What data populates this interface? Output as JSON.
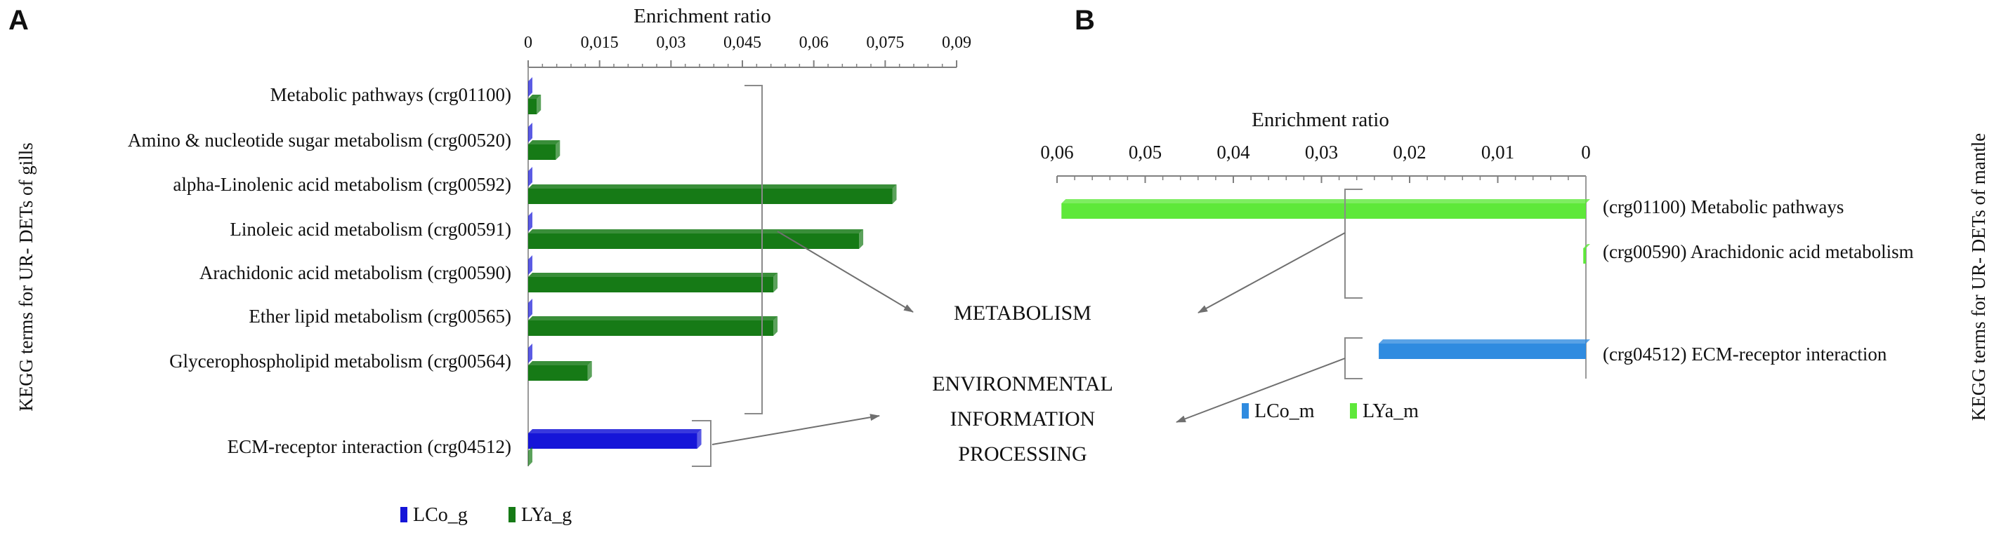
{
  "panels": {
    "a": {
      "letter": "A",
      "ylabel": "KEGG terms for UR- DETs of gills"
    },
    "b": {
      "letter": "B",
      "ylabel": "KEGG terms for UR- DETs of mantle"
    }
  },
  "categories_text": {
    "metabolism": "METABOLISM",
    "env_lines": [
      "ENVIRONMENTAL",
      "INFORMATION",
      "PROCESSING"
    ]
  },
  "colors": {
    "lco_g": "#1515d8",
    "lya_g": "#167a16",
    "lco_m": "#2f8be0",
    "lya_m": "#5ee83a",
    "axis": "#7f7f7f",
    "text": "#111111"
  },
  "chart_data": [
    {
      "type": "bar",
      "orientation": "horizontal",
      "title": "",
      "xlabel": "Enrichment ratio",
      "ylabel": "KEGG terms for UR- DETs of gills",
      "x_ticks": [
        "0",
        "0,015",
        "0,03",
        "0,045",
        "0,06",
        "0,075",
        "0,09"
      ],
      "x_tick_values": [
        0,
        0.015,
        0.03,
        0.045,
        0.06,
        0.075,
        0.09
      ],
      "xlim": [
        0,
        0.09
      ],
      "legend": "bottom-left",
      "categories": [
        "Metabolic pathways (crg01100)",
        "Amino & nucleotide sugar metabolism (crg00520)",
        "alpha-Linolenic acid metabolism (crg00592)",
        "Linoleic acid metabolism (crg00591)",
        "Arachidonic acid metabolism (crg00590)",
        "Ether lipid metabolism (crg00565)",
        "Glycerophospholipid metabolism (crg00564)",
        "ECM-receptor interaction (crg04512)"
      ],
      "series": [
        {
          "name": "LCo_g",
          "values": [
            0,
            0,
            0,
            0,
            0,
            0,
            0,
            0.0355
          ]
        },
        {
          "name": "LYa_g",
          "values": [
            0.0018,
            0.0058,
            0.0765,
            0.0695,
            0.0515,
            0.0515,
            0.0125,
            0
          ]
        }
      ]
    },
    {
      "type": "bar",
      "orientation": "horizontal",
      "title": "",
      "xlabel": "Enrichment ratio",
      "ylabel": "KEGG terms for UR- DETs of mantle",
      "x_ticks": [
        "0,06",
        "0,05",
        "0,04",
        "0,03",
        "0,02",
        "0,01",
        "0"
      ],
      "x_tick_values": [
        0.06,
        0.05,
        0.04,
        0.03,
        0.02,
        0.01,
        0
      ],
      "xlim": [
        0.06,
        0
      ],
      "x_reversed": true,
      "legend": "bottom",
      "categories": [
        "(crg01100) Metabolic pathways",
        "(crg00590) Arachidonic acid metabolism",
        "(crg04512) ECM-receptor interaction"
      ],
      "series": [
        {
          "name": "LCo_m",
          "values": [
            0,
            0,
            0.0235
          ]
        },
        {
          "name": "LYa_m",
          "values": [
            0.0595,
            0.0003,
            0
          ]
        }
      ]
    }
  ]
}
